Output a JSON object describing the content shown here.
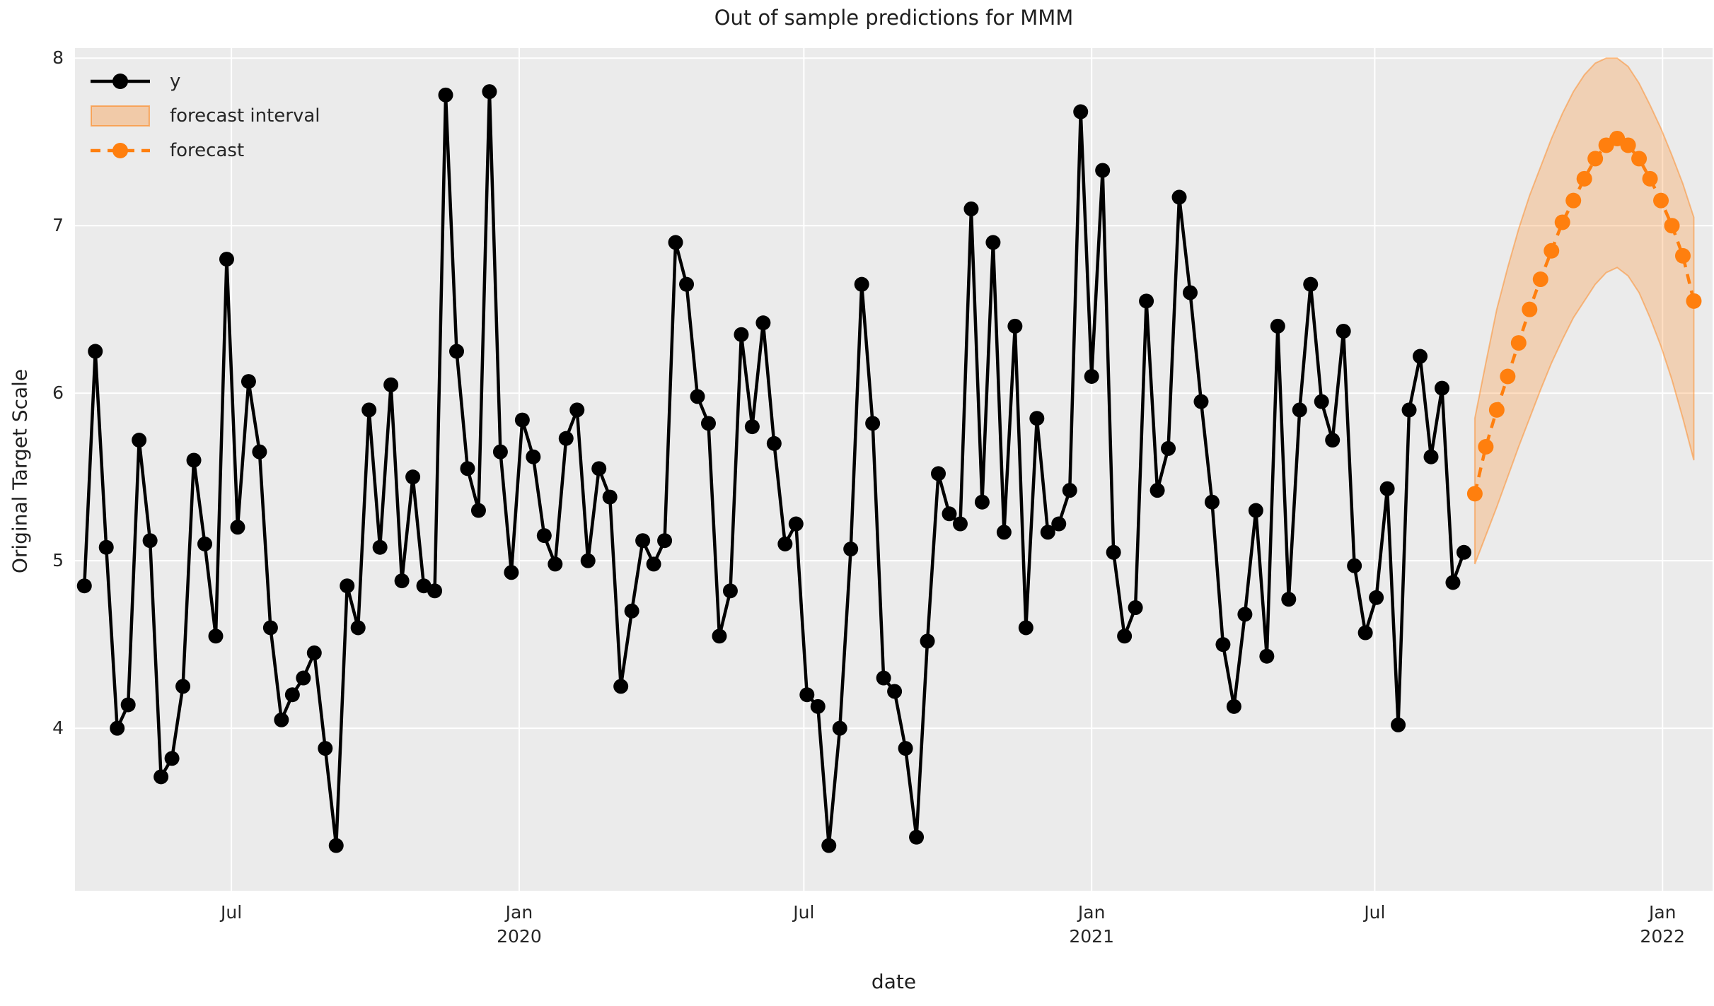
{
  "figure": {
    "title": "Out of sample predictions for MMM",
    "xlabel": "date",
    "ylabel": "Original Target Scale"
  },
  "colors": {
    "axes_background": "#ebebeb",
    "grid": "#ffffff",
    "y_series": "#000000",
    "forecast": "#ff7f0e",
    "forecast_interval_fill": "#ff7f0e",
    "text": "#262626"
  },
  "legend": {
    "items": [
      {
        "label": "y",
        "swatch": "line-with-marker",
        "color": "#000000"
      },
      {
        "label": "forecast interval",
        "swatch": "patch",
        "color": "#ff7f0e"
      },
      {
        "label": "forecast",
        "swatch": "dashed-line-with-marker",
        "color": "#ff7f0e"
      }
    ]
  },
  "chart_data": {
    "type": "line",
    "title": "Out of sample predictions for MMM",
    "xlabel": "date",
    "ylabel": "Original Target Scale",
    "grid": true,
    "legend_position": "upper left",
    "x_domain": [
      "2019-03-23",
      "2022-02-02"
    ],
    "ylim": [
      3.03,
      8.06
    ],
    "yticks": [
      4,
      5,
      6,
      7,
      8
    ],
    "xticks": [
      {
        "date": "2019-07-01",
        "line1": "Jul",
        "line2": ""
      },
      {
        "date": "2020-01-01",
        "line1": "Jan",
        "line2": "2020"
      },
      {
        "date": "2020-07-01",
        "line1": "Jul",
        "line2": ""
      },
      {
        "date": "2021-01-01",
        "line1": "Jan",
        "line2": "2021"
      },
      {
        "date": "2021-07-01",
        "line1": "Jul",
        "line2": ""
      },
      {
        "date": "2022-01-01",
        "line1": "Jan",
        "line2": "2022"
      }
    ],
    "series": [
      {
        "name": "y",
        "style": "solid-line-with-markers",
        "color": "#000000",
        "start": "2019-03-29",
        "cadence_days": 7,
        "values": [
          4.85,
          6.25,
          5.08,
          4.0,
          4.14,
          5.72,
          5.12,
          3.71,
          3.82,
          4.25,
          5.6,
          5.1,
          4.55,
          6.8,
          5.2,
          6.07,
          5.65,
          4.6,
          4.05,
          4.2,
          4.3,
          4.45,
          3.88,
          3.3,
          4.85,
          4.6,
          5.9,
          5.08,
          6.05,
          4.88,
          5.5,
          4.85,
          4.82,
          7.78,
          6.25,
          5.55,
          5.3,
          7.8,
          5.65,
          4.93,
          5.84,
          5.62,
          5.15,
          4.98,
          5.73,
          5.9,
          5.0,
          5.55,
          5.38,
          4.25,
          4.7,
          5.12,
          4.98,
          5.12,
          6.9,
          6.65,
          5.98,
          5.82,
          4.55,
          4.82,
          6.35,
          5.8,
          6.42,
          5.7,
          5.1,
          5.22,
          4.2,
          4.13,
          3.3,
          4.0,
          5.07,
          6.65,
          5.82,
          4.3,
          4.22,
          3.88,
          3.35,
          4.52,
          5.52,
          5.28,
          5.22,
          7.1,
          5.35,
          6.9,
          5.17,
          6.4,
          4.6,
          5.85,
          5.17,
          5.22,
          5.42,
          7.68,
          6.1,
          7.33,
          5.05,
          4.55,
          4.72,
          6.55,
          5.42,
          5.67,
          7.17,
          6.6,
          5.95,
          5.35,
          4.5,
          4.13,
          4.68,
          5.3,
          4.43,
          6.4,
          4.77,
          5.9,
          6.65,
          5.95,
          5.72,
          6.37,
          4.97,
          4.57,
          4.78,
          5.43,
          4.02,
          5.9,
          6.22,
          5.62,
          6.03,
          4.87,
          5.05
        ]
      },
      {
        "name": "forecast",
        "style": "dashed-line-with-markers",
        "color": "#ff7f0e",
        "start": "2021-09-03",
        "cadence_days": 7,
        "values": [
          5.4,
          5.68,
          5.9,
          6.1,
          6.3,
          6.5,
          6.68,
          6.85,
          7.02,
          7.15,
          7.28,
          7.4,
          7.48,
          7.52,
          7.48,
          7.4,
          7.28,
          7.15,
          7.0,
          6.82,
          6.55
        ]
      },
      {
        "name": "forecast interval",
        "style": "band",
        "color": "#ff7f0e",
        "opacity": 0.25,
        "start": "2021-09-03",
        "cadence_days": 7,
        "lower": [
          4.98,
          5.15,
          5.32,
          5.5,
          5.68,
          5.85,
          6.02,
          6.18,
          6.32,
          6.45,
          6.55,
          6.65,
          6.72,
          6.75,
          6.7,
          6.6,
          6.45,
          6.28,
          6.08,
          5.85,
          5.6
        ],
        "upper": [
          5.85,
          6.18,
          6.5,
          6.75,
          6.98,
          7.18,
          7.35,
          7.52,
          7.67,
          7.8,
          7.9,
          7.97,
          8.0,
          8.0,
          7.95,
          7.85,
          7.72,
          7.58,
          7.42,
          7.25,
          7.05
        ]
      }
    ]
  }
}
